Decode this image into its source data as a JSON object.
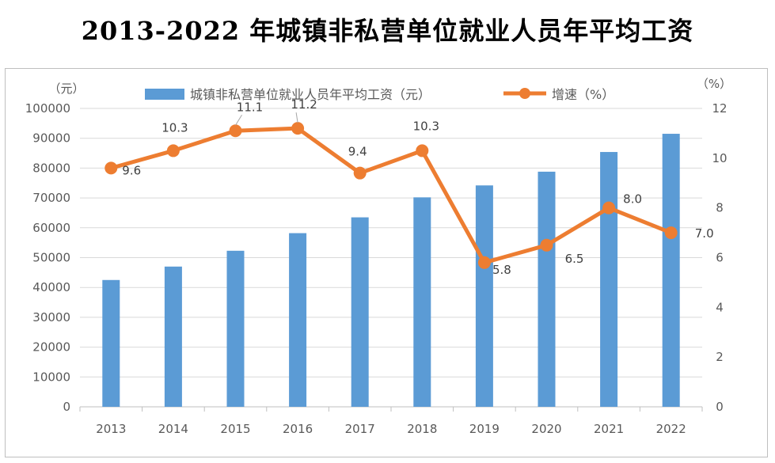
{
  "title": "2013-2022 年城镇非私营单位就业人员年平均工资",
  "chart_data": {
    "type": "bar+line",
    "title": "2013-2022 年城镇非私营单位就业人员年平均工资",
    "categories": [
      "2013",
      "2014",
      "2015",
      "2016",
      "2017",
      "2018",
      "2019",
      "2020",
      "2021",
      "2022"
    ],
    "series": [
      {
        "name": "城镇非私营单位就业人员年平均工资（元）",
        "type": "bar",
        "axis": "left",
        "color": "#5B9BD5",
        "values": [
          42500,
          47000,
          52300,
          58200,
          63500,
          70200,
          74200,
          78800,
          85400,
          91500
        ]
      },
      {
        "name": "增速（%）",
        "type": "line",
        "axis": "right",
        "color": "#ED7D31",
        "values": [
          9.6,
          10.3,
          11.1,
          11.2,
          9.4,
          10.3,
          5.8,
          6.5,
          8.0,
          7.0
        ],
        "labels": [
          "9.6",
          "10.3",
          "11.1",
          "11.2",
          "9.4",
          "10.3",
          "5.8",
          "6.5",
          "8.0",
          "7.0"
        ]
      }
    ],
    "y_left": {
      "unit": "（元）",
      "ylim": [
        0,
        100000
      ],
      "ticks": [
        "0",
        "10000",
        "20000",
        "30000",
        "40000",
        "50000",
        "60000",
        "70000",
        "80000",
        "90000",
        "100000"
      ]
    },
    "y_right": {
      "unit": "（%）",
      "ylim": [
        0,
        12
      ],
      "ticks": [
        "0",
        "2",
        "4",
        "6",
        "8",
        "10",
        "12"
      ]
    },
    "grid": true,
    "legend_position": "top"
  }
}
